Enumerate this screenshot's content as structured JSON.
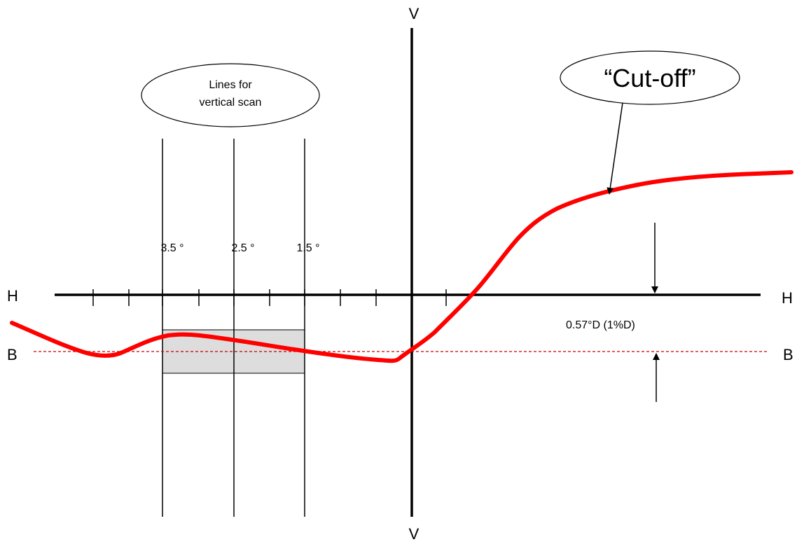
{
  "axes": {
    "v_top": "V",
    "v_bottom": "V",
    "h_left": "H",
    "h_right": "H",
    "b_left": "B",
    "b_right": "B"
  },
  "scan_lines": [
    {
      "label": "3.5 °"
    },
    {
      "label": "2.5 °"
    },
    {
      "label": "1.5 °"
    }
  ],
  "callouts": {
    "scan_oval_line1": "Lines for",
    "scan_oval_line2": "vertical scan",
    "cutoff": "“Cut-off”"
  },
  "measurement": {
    "label": "0.57°D (1%D)"
  },
  "colors": {
    "cutoff_curve": "#ff0000",
    "baseline_b": "#cc0000",
    "scan_box_fill": "#dddddd",
    "lines": "#000000"
  }
}
